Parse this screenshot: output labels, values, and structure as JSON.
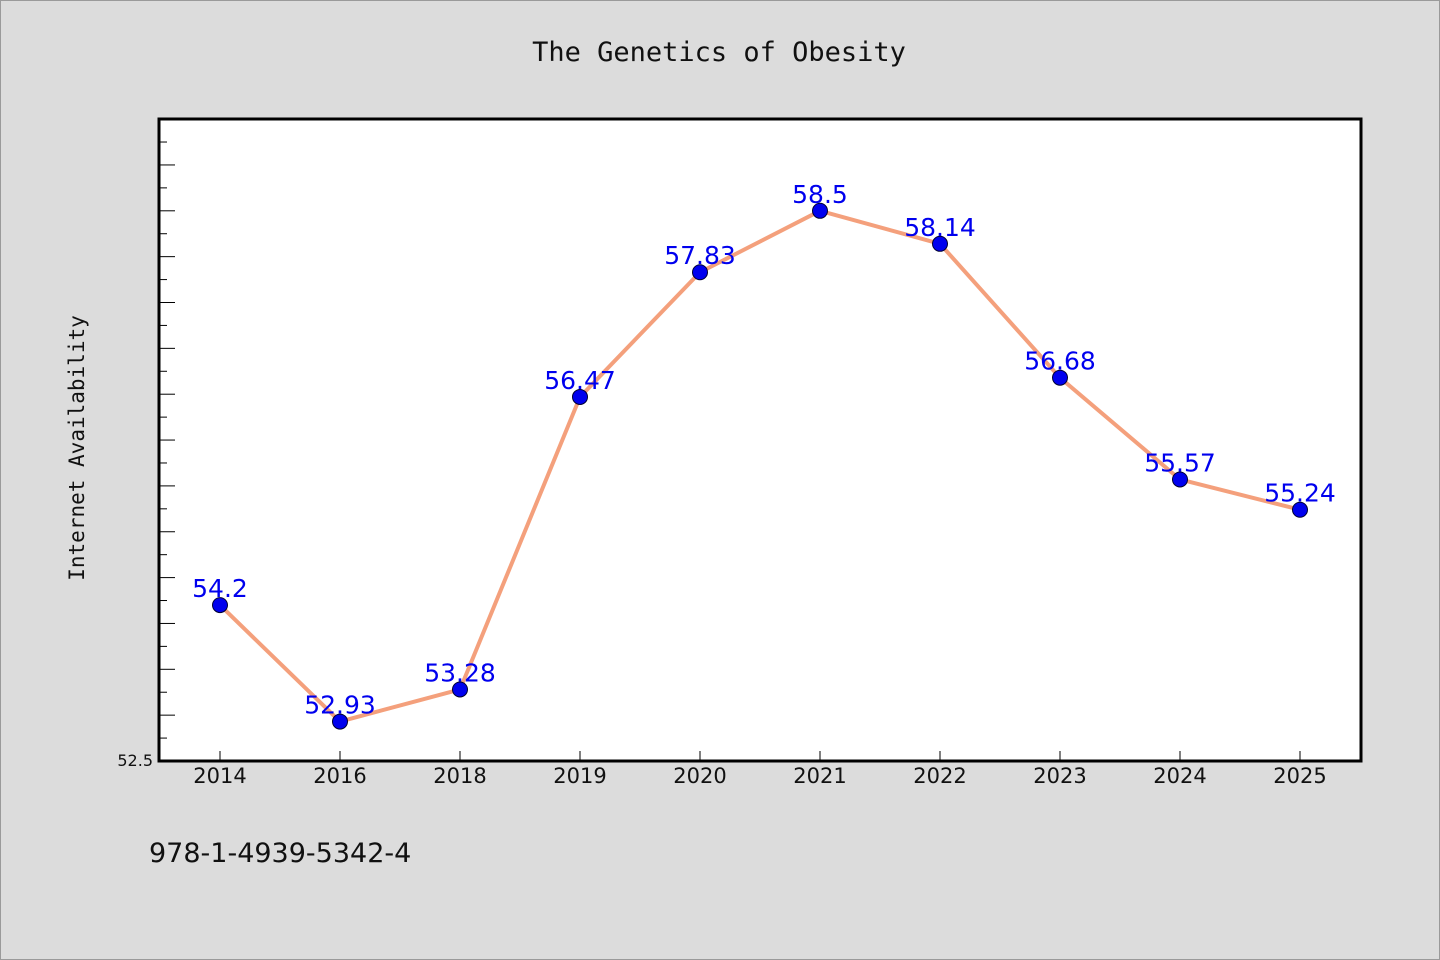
{
  "chart_data": {
    "type": "line",
    "title": "The Genetics of Obesity",
    "ylabel": "Internet Availability",
    "xlabel": "",
    "categories": [
      "2014",
      "2016",
      "2018",
      "2019",
      "2020",
      "2021",
      "2022",
      "2023",
      "2024",
      "2025"
    ],
    "series": [
      {
        "values": [
          54.2,
          52.93,
          53.28,
          56.47,
          57.83,
          58.5,
          58.14,
          56.68,
          55.57,
          55.24
        ],
        "labels": [
          "54.2",
          "52.93",
          "53.28",
          "56.47",
          "57.83",
          "58.5",
          "58.14",
          "56.68",
          "55.57",
          "55.24"
        ]
      }
    ],
    "ylim": [
      52.5,
      59.5
    ],
    "y_tick_labels_shown": [
      "52.5"
    ],
    "grid": false,
    "line_color": "#f4a07c",
    "marker_color": "#0000ee",
    "label_color": "#0000ee"
  },
  "footer": {
    "isbn": "978-1-4939-5342-4"
  }
}
